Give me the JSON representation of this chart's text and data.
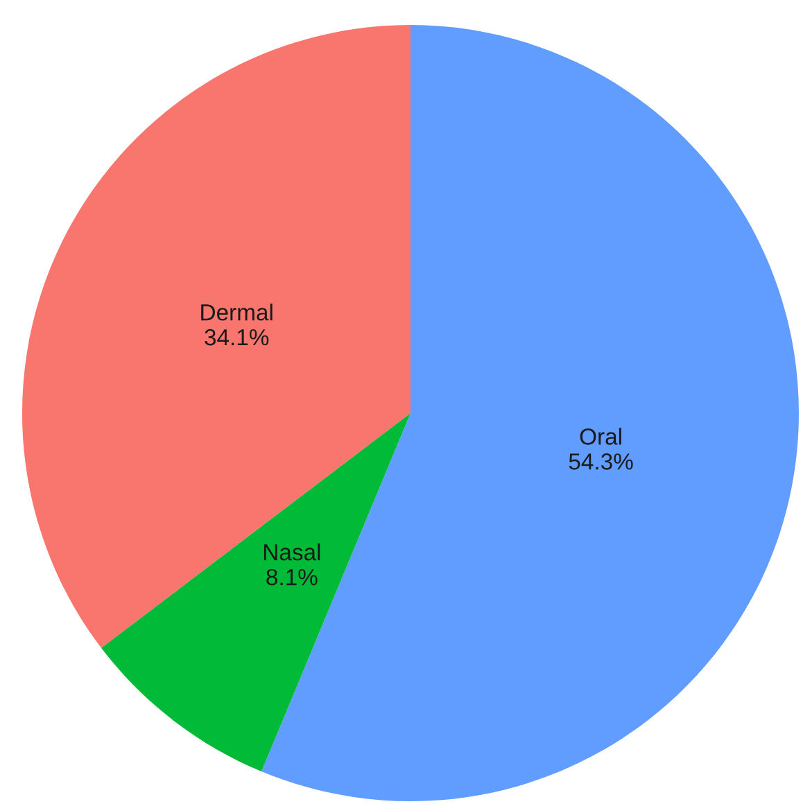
{
  "chart_data": {
    "type": "pie",
    "categories": [
      "Oral",
      "Nasal",
      "Dermal"
    ],
    "values": [
      54.3,
      8.1,
      34.1
    ],
    "value_labels": [
      "54.3%",
      "8.1%",
      "34.1%"
    ],
    "colors": [
      "#619cff",
      "#00ba38",
      "#f8766d"
    ]
  }
}
